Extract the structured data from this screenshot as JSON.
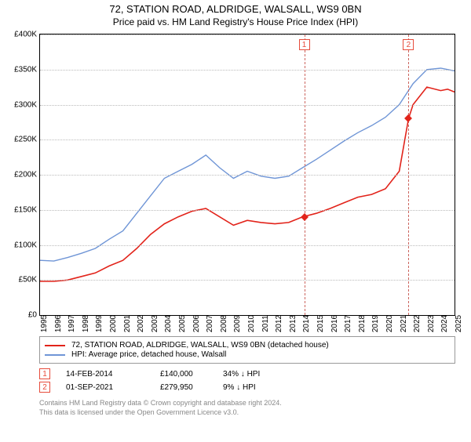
{
  "title_line1": "72, STATION ROAD, ALDRIDGE, WALSALL, WS9 0BN",
  "title_line2": "Price paid vs. HM Land Registry's House Price Index (HPI)",
  "chart": {
    "type": "line",
    "background_color": "#ffffff",
    "grid_color": "#bbbbbb",
    "border_color": "#000000",
    "ylim": [
      0,
      400000
    ],
    "ytick_step": 50000,
    "yticks": [
      "£0",
      "£50K",
      "£100K",
      "£150K",
      "£200K",
      "£250K",
      "£300K",
      "£350K",
      "£400K"
    ],
    "x_years": [
      1995,
      1996,
      1997,
      1998,
      1999,
      2000,
      2001,
      2002,
      2003,
      2004,
      2005,
      2006,
      2007,
      2008,
      2009,
      2010,
      2011,
      2012,
      2013,
      2014,
      2015,
      2016,
      2017,
      2018,
      2019,
      2020,
      2021,
      2022,
      2023,
      2024,
      2025
    ],
    "series": [
      {
        "name": "price_paid",
        "color": "#e2231a",
        "width": 1.6,
        "label": "72, STATION ROAD, ALDRIDGE, WALSALL, WS9 0BN (detached house)",
        "points": [
          [
            1995,
            48000
          ],
          [
            1996,
            48000
          ],
          [
            1997,
            50000
          ],
          [
            1998,
            55000
          ],
          [
            1999,
            60000
          ],
          [
            2000,
            70000
          ],
          [
            2001,
            78000
          ],
          [
            2002,
            95000
          ],
          [
            2003,
            115000
          ],
          [
            2004,
            130000
          ],
          [
            2005,
            140000
          ],
          [
            2006,
            148000
          ],
          [
            2007,
            152000
          ],
          [
            2008,
            140000
          ],
          [
            2009,
            128000
          ],
          [
            2010,
            135000
          ],
          [
            2011,
            132000
          ],
          [
            2012,
            130000
          ],
          [
            2013,
            132000
          ],
          [
            2014,
            140000
          ],
          [
            2015,
            145000
          ],
          [
            2016,
            152000
          ],
          [
            2017,
            160000
          ],
          [
            2018,
            168000
          ],
          [
            2019,
            172000
          ],
          [
            2020,
            180000
          ],
          [
            2021,
            205000
          ],
          [
            2021.67,
            279950
          ],
          [
            2022,
            300000
          ],
          [
            2023,
            325000
          ],
          [
            2024,
            320000
          ],
          [
            2024.5,
            322000
          ],
          [
            2025,
            318000
          ]
        ]
      },
      {
        "name": "hpi",
        "color": "#6f95d6",
        "width": 1.4,
        "label": "HPI: Average price, detached house, Walsall",
        "points": [
          [
            1995,
            78000
          ],
          [
            1996,
            77000
          ],
          [
            1997,
            82000
          ],
          [
            1998,
            88000
          ],
          [
            1999,
            95000
          ],
          [
            2000,
            108000
          ],
          [
            2001,
            120000
          ],
          [
            2002,
            145000
          ],
          [
            2003,
            170000
          ],
          [
            2004,
            195000
          ],
          [
            2005,
            205000
          ],
          [
            2006,
            215000
          ],
          [
            2007,
            228000
          ],
          [
            2008,
            210000
          ],
          [
            2009,
            195000
          ],
          [
            2010,
            205000
          ],
          [
            2011,
            198000
          ],
          [
            2012,
            195000
          ],
          [
            2013,
            198000
          ],
          [
            2014,
            210000
          ],
          [
            2015,
            222000
          ],
          [
            2016,
            235000
          ],
          [
            2017,
            248000
          ],
          [
            2018,
            260000
          ],
          [
            2019,
            270000
          ],
          [
            2020,
            282000
          ],
          [
            2021,
            300000
          ],
          [
            2022,
            330000
          ],
          [
            2023,
            350000
          ],
          [
            2024,
            352000
          ],
          [
            2025,
            348000
          ]
        ]
      }
    ],
    "sales": [
      {
        "num": "1",
        "year": 2014.12,
        "value": 140000,
        "point_color": "#e2231a"
      },
      {
        "num": "2",
        "year": 2021.67,
        "value": 279950,
        "point_color": "#e2231a"
      }
    ]
  },
  "legend": {
    "border_color": "#999999"
  },
  "sales_table": [
    {
      "num": "1",
      "date": "14-FEB-2014",
      "price": "£140,000",
      "pct": "34% ↓ HPI"
    },
    {
      "num": "2",
      "date": "01-SEP-2021",
      "price": "£279,950",
      "pct": "9% ↓ HPI"
    }
  ],
  "footer_line1": "Contains HM Land Registry data © Crown copyright and database right 2024.",
  "footer_line2": "This data is licensed under the Open Government Licence v3.0."
}
